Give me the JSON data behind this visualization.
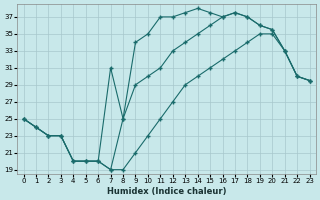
{
  "xlabel": "Humidex (Indice chaleur)",
  "bg_color": "#c8e8ea",
  "grid_color": "#a8c8cc",
  "line_color": "#1a6b6b",
  "xlim": [
    -0.5,
    23.5
  ],
  "ylim": [
    18.5,
    38.5
  ],
  "yticks": [
    19,
    21,
    23,
    25,
    27,
    29,
    31,
    33,
    35,
    37
  ],
  "xticks": [
    0,
    1,
    2,
    3,
    4,
    5,
    6,
    7,
    8,
    9,
    10,
    11,
    12,
    13,
    14,
    15,
    16,
    17,
    18,
    19,
    20,
    21,
    22,
    23
  ],
  "curve1_x": [
    0,
    1,
    2,
    3,
    4,
    5,
    6,
    7,
    8,
    9,
    10,
    11,
    12,
    13,
    14,
    15,
    16,
    17,
    18,
    19,
    20,
    21,
    22,
    23
  ],
  "curve1_y": [
    25,
    24,
    23,
    23,
    20,
    20,
    20,
    19,
    19,
    21,
    23,
    25,
    27,
    29,
    30,
    31,
    32,
    33,
    34,
    35,
    35,
    33,
    30,
    29.5
  ],
  "curve2_x": [
    0,
    1,
    2,
    3,
    4,
    5,
    6,
    7,
    8,
    9,
    10,
    11,
    12,
    13,
    14,
    15,
    16,
    17,
    18,
    19,
    20,
    21,
    22,
    23
  ],
  "curve2_y": [
    25,
    24,
    23,
    23,
    20,
    20,
    20,
    19,
    25,
    34,
    35,
    37,
    37,
    37.5,
    38,
    37.5,
    37,
    37.5,
    37,
    36,
    35.5,
    33,
    30,
    29.5
  ],
  "curve3_x": [
    0,
    1,
    2,
    3,
    4,
    5,
    6,
    7,
    8,
    9,
    10,
    11,
    12,
    13,
    14,
    15,
    16,
    17,
    18,
    19,
    20,
    21,
    22,
    23
  ],
  "curve3_y": [
    25,
    24,
    23,
    23,
    20,
    20,
    20,
    31,
    25,
    29,
    30,
    31,
    33,
    34,
    35,
    36,
    37,
    37.5,
    37,
    36,
    35.5,
    33,
    30,
    29.5
  ]
}
